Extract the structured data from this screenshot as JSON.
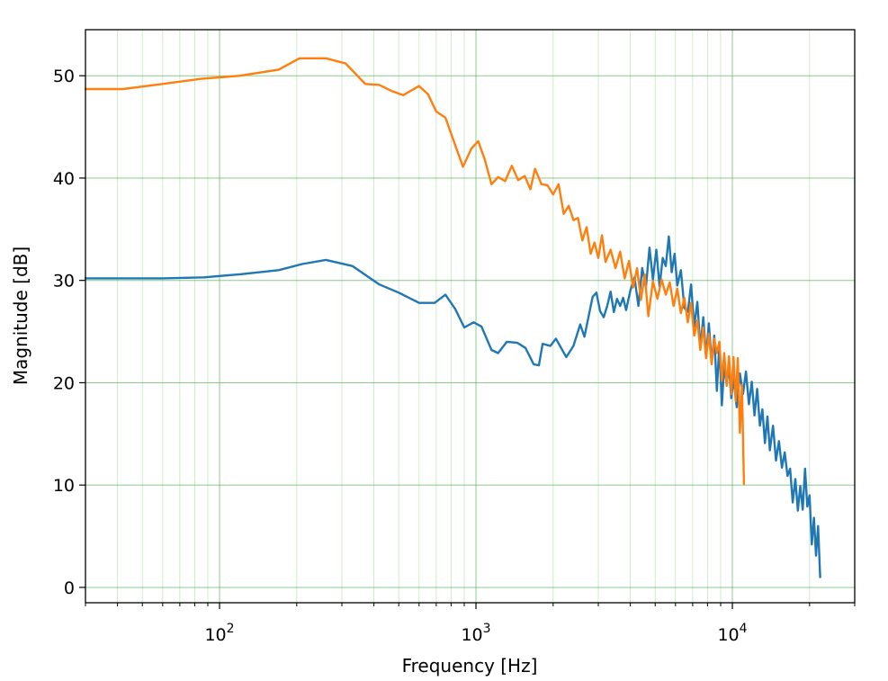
{
  "chart_data": {
    "type": "line",
    "xlabel": "Frequency [Hz]",
    "ylabel": "Magnitude [dB]",
    "x_scale": "log",
    "xlim": [
      30,
      30000
    ],
    "ylim": [
      -1.5,
      54.5
    ],
    "x_ticks": [
      {
        "value": 100,
        "base": "10",
        "exp": "2"
      },
      {
        "value": 1000,
        "base": "10",
        "exp": "3"
      },
      {
        "value": 10000,
        "base": "10",
        "exp": "4"
      }
    ],
    "y_ticks": [
      0,
      10,
      20,
      30,
      40,
      50
    ],
    "grid": true,
    "grid_color": "#2ca02c",
    "legend": "none",
    "series": [
      {
        "color": "#1f77b4",
        "points": [
          [
            30,
            30.2
          ],
          [
            45,
            30.2
          ],
          [
            60,
            30.2
          ],
          [
            87,
            30.3
          ],
          [
            120,
            30.6
          ],
          [
            170,
            31.0
          ],
          [
            210,
            31.6
          ],
          [
            260,
            32.0
          ],
          [
            330,
            31.4
          ],
          [
            420,
            29.6
          ],
          [
            500,
            28.8
          ],
          [
            600,
            27.8
          ],
          [
            690,
            27.8
          ],
          [
            760,
            28.6
          ],
          [
            830,
            27.2
          ],
          [
            900,
            25.4
          ],
          [
            980,
            25.9
          ],
          [
            1050,
            25.5
          ],
          [
            1150,
            23.2
          ],
          [
            1220,
            22.9
          ],
          [
            1320,
            24.0
          ],
          [
            1450,
            23.9
          ],
          [
            1560,
            23.4
          ],
          [
            1680,
            21.8
          ],
          [
            1760,
            21.7
          ],
          [
            1820,
            23.8
          ],
          [
            1950,
            23.6
          ],
          [
            2050,
            24.3
          ],
          [
            2250,
            22.5
          ],
          [
            2400,
            23.6
          ],
          [
            2550,
            25.7
          ],
          [
            2650,
            24.5
          ],
          [
            2850,
            28.4
          ],
          [
            2950,
            28.8
          ],
          [
            3050,
            27.0
          ],
          [
            3150,
            26.4
          ],
          [
            3250,
            27.5
          ],
          [
            3350,
            28.9
          ],
          [
            3450,
            26.9
          ],
          [
            3550,
            28.2
          ],
          [
            3650,
            27.5
          ],
          [
            3750,
            28.3
          ],
          [
            3850,
            27.1
          ],
          [
            4000,
            29.0
          ],
          [
            4150,
            30.3
          ],
          [
            4300,
            27.5
          ],
          [
            4450,
            31.2
          ],
          [
            4600,
            29.3
          ],
          [
            4750,
            33.2
          ],
          [
            4900,
            30.1
          ],
          [
            5050,
            33.0
          ],
          [
            5200,
            29.4
          ],
          [
            5350,
            32.2
          ],
          [
            5500,
            31.4
          ],
          [
            5650,
            34.3
          ],
          [
            5800,
            30.8
          ],
          [
            5950,
            32.6
          ],
          [
            6100,
            29.5
          ],
          [
            6300,
            31.0
          ],
          [
            6500,
            27.3
          ],
          [
            6700,
            26.9
          ],
          [
            6900,
            29.6
          ],
          [
            7100,
            25.5
          ],
          [
            7300,
            27.9
          ],
          [
            7500,
            23.4
          ],
          [
            7700,
            26.4
          ],
          [
            7900,
            22.6
          ],
          [
            8100,
            25.8
          ],
          [
            8300,
            22.0
          ],
          [
            8500,
            24.6
          ],
          [
            8700,
            19.2
          ],
          [
            8900,
            23.8
          ],
          [
            9100,
            17.8
          ],
          [
            9300,
            21.7
          ],
          [
            9500,
            19.9
          ],
          [
            9700,
            21.6
          ],
          [
            9900,
            18.5
          ],
          [
            10100,
            20.4
          ],
          [
            10400,
            17.6
          ],
          [
            10700,
            20.9
          ],
          [
            11000,
            18.9
          ],
          [
            11300,
            21.1
          ],
          [
            11600,
            17.9
          ],
          [
            11900,
            20.1
          ],
          [
            12200,
            16.8
          ],
          [
            12500,
            19.4
          ],
          [
            12800,
            15.8
          ],
          [
            13100,
            17.4
          ],
          [
            13400,
            14.1
          ],
          [
            13700,
            16.7
          ],
          [
            14000,
            13.4
          ],
          [
            14400,
            15.8
          ],
          [
            14800,
            12.4
          ],
          [
            15200,
            14.3
          ],
          [
            15600,
            11.7
          ],
          [
            16000,
            13.2
          ],
          [
            16400,
            10.9
          ],
          [
            16800,
            11.6
          ],
          [
            17200,
            8.3
          ],
          [
            17600,
            10.6
          ],
          [
            18000,
            7.5
          ],
          [
            18400,
            9.9
          ],
          [
            18800,
            7.6
          ],
          [
            19200,
            11.6
          ],
          [
            19600,
            7.9
          ],
          [
            20000,
            9.0
          ],
          [
            20400,
            4.2
          ],
          [
            20800,
            6.8
          ],
          [
            21200,
            3.1
          ],
          [
            21600,
            6.0
          ],
          [
            22000,
            1.0
          ]
        ]
      },
      {
        "color": "#ff7f0e",
        "points": [
          [
            30,
            48.7
          ],
          [
            42,
            48.7
          ],
          [
            60,
            49.2
          ],
          [
            85,
            49.7
          ],
          [
            120,
            50.0
          ],
          [
            170,
            50.6
          ],
          [
            205,
            51.7
          ],
          [
            260,
            51.7
          ],
          [
            310,
            51.2
          ],
          [
            370,
            49.2
          ],
          [
            420,
            49.1
          ],
          [
            470,
            48.5
          ],
          [
            520,
            48.1
          ],
          [
            600,
            49.0
          ],
          [
            650,
            48.2
          ],
          [
            700,
            46.5
          ],
          [
            760,
            45.9
          ],
          [
            830,
            43.2
          ],
          [
            890,
            41.1
          ],
          [
            960,
            42.9
          ],
          [
            1020,
            43.6
          ],
          [
            1080,
            41.9
          ],
          [
            1150,
            39.4
          ],
          [
            1220,
            40.1
          ],
          [
            1300,
            39.7
          ],
          [
            1380,
            41.2
          ],
          [
            1460,
            39.8
          ],
          [
            1550,
            40.2
          ],
          [
            1630,
            38.9
          ],
          [
            1700,
            40.9
          ],
          [
            1800,
            39.4
          ],
          [
            1900,
            39.3
          ],
          [
            2000,
            38.4
          ],
          [
            2100,
            39.4
          ],
          [
            2200,
            36.5
          ],
          [
            2300,
            37.3
          ],
          [
            2400,
            35.9
          ],
          [
            2500,
            36.1
          ],
          [
            2600,
            33.9
          ],
          [
            2700,
            35.2
          ],
          [
            2800,
            32.6
          ],
          [
            2900,
            33.7
          ],
          [
            3000,
            32.2
          ],
          [
            3100,
            34.4
          ],
          [
            3200,
            31.8
          ],
          [
            3350,
            33.0
          ],
          [
            3500,
            31.2
          ],
          [
            3650,
            32.8
          ],
          [
            3800,
            30.2
          ],
          [
            3950,
            31.9
          ],
          [
            4100,
            29.3
          ],
          [
            4250,
            31.2
          ],
          [
            4400,
            28.1
          ],
          [
            4550,
            30.6
          ],
          [
            4700,
            26.5
          ],
          [
            4900,
            29.9
          ],
          [
            5100,
            28.2
          ],
          [
            5300,
            30.1
          ],
          [
            5500,
            28.6
          ],
          [
            5700,
            29.8
          ],
          [
            5900,
            27.5
          ],
          [
            6100,
            29.2
          ],
          [
            6300,
            26.8
          ],
          [
            6500,
            28.3
          ],
          [
            6700,
            25.9
          ],
          [
            6900,
            27.8
          ],
          [
            7100,
            24.6
          ],
          [
            7300,
            26.1
          ],
          [
            7500,
            23.2
          ],
          [
            7700,
            25.4
          ],
          [
            7900,
            22.4
          ],
          [
            8100,
            24.8
          ],
          [
            8300,
            21.8
          ],
          [
            8500,
            24.3
          ],
          [
            8700,
            22.9
          ],
          [
            8900,
            24.0
          ],
          [
            9100,
            20.2
          ],
          [
            9300,
            22.9
          ],
          [
            9500,
            19.7
          ],
          [
            9700,
            22.6
          ],
          [
            9900,
            18.9
          ],
          [
            10100,
            22.5
          ],
          [
            10300,
            18.2
          ],
          [
            10500,
            22.4
          ],
          [
            10700,
            15.1
          ],
          [
            10900,
            19.8
          ],
          [
            11100,
            10.1
          ]
        ]
      }
    ]
  }
}
